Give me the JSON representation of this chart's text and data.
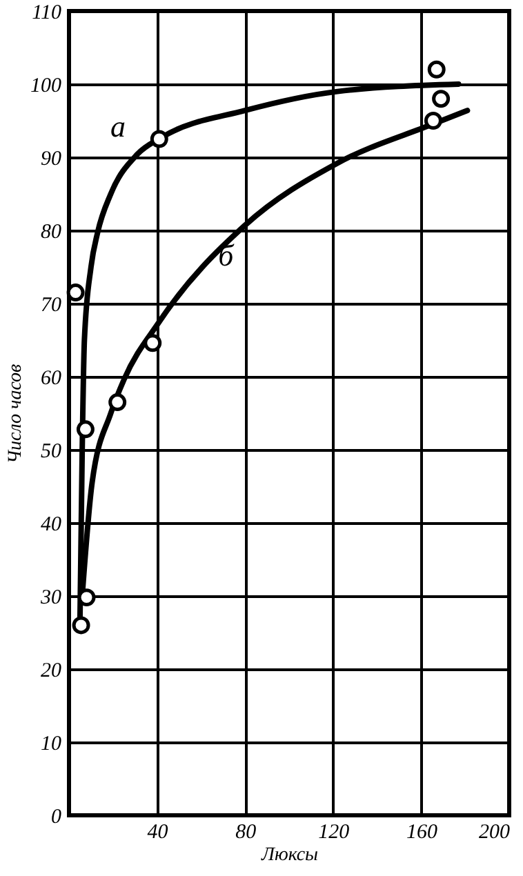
{
  "chart_data": {
    "type": "line",
    "xlabel": "Люксы",
    "ylabel": "Число часов",
    "xlim": [
      0,
      200
    ],
    "ylim": [
      0,
      110
    ],
    "xticks": [
      40,
      80,
      120,
      160,
      200
    ],
    "yticks": [
      0,
      10,
      20,
      30,
      40,
      50,
      60,
      70,
      80,
      90,
      100,
      110
    ],
    "grid": true,
    "line_style": "solid",
    "series": [
      {
        "name": "а",
        "color": "#000000",
        "marker": "none",
        "x": [
          5,
          6,
          7,
          10,
          13,
          19,
          31,
          42,
          80,
          122,
          177
        ],
        "values": [
          27,
          50,
          65,
          75,
          79.7,
          85,
          90.4,
          92.7,
          96.4,
          99,
          100
        ]
      },
      {
        "name": "б",
        "color": "#000000",
        "marker": "none",
        "x": [
          6,
          10.5,
          19,
          25,
          41,
          80,
          122,
          165,
          181
        ],
        "values": [
          30,
          45.5,
          55,
          59.6,
          67.5,
          80.7,
          89.2,
          94.5,
          96.4
        ]
      },
      {
        "type": "scatter",
        "color": "#000000",
        "marker": "circle",
        "x": [
          3,
          7.5,
          8,
          5.5,
          22,
          38,
          41,
          167,
          169,
          165.5
        ],
        "values": [
          71.5,
          52.8,
          29.8,
          26,
          56.5,
          64.6,
          92.5,
          102,
          98,
          95
        ]
      }
    ]
  }
}
